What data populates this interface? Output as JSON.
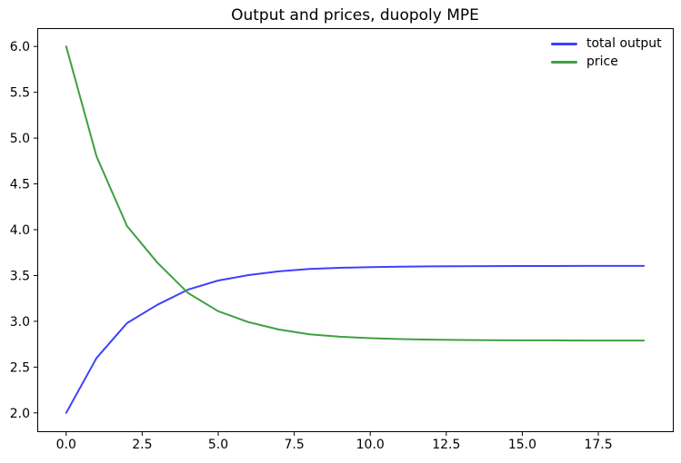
{
  "figure": {
    "background": "#ffffff",
    "spine_color": "#000000",
    "tick_color": "#000000"
  },
  "chart_data": {
    "type": "line",
    "title": "Output and prices, duopoly MPE",
    "xlabel": "",
    "ylabel": "",
    "grid": false,
    "xlim": [
      -0.95,
      19.95
    ],
    "ylim": [
      1.8,
      6.2
    ],
    "xticks": [
      0,
      2.5,
      5,
      7.5,
      10,
      12.5,
      15,
      17.5
    ],
    "xtick_labels": [
      "0.0",
      "2.5",
      "5.0",
      "7.5",
      "10.0",
      "12.5",
      "15.0",
      "17.5"
    ],
    "yticks": [
      2.0,
      2.5,
      3.0,
      3.5,
      4.0,
      4.5,
      5.0,
      5.5,
      6.0
    ],
    "ytick_labels": [
      "2.0",
      "2.5",
      "3.0",
      "3.5",
      "4.0",
      "4.5",
      "5.0",
      "5.5",
      "6.0"
    ],
    "x": [
      0,
      1,
      2,
      3,
      4,
      5,
      6,
      7,
      8,
      9,
      10,
      11,
      12,
      13,
      14,
      15,
      16,
      17,
      18,
      19
    ],
    "series": [
      {
        "name": "total output",
        "color": "#4040ff",
        "line_width": 2,
        "values": [
          2.0,
          2.6,
          2.98,
          3.18,
          3.345,
          3.445,
          3.505,
          3.545,
          3.571,
          3.584,
          3.592,
          3.597,
          3.6,
          3.602,
          3.603,
          3.604,
          3.604,
          3.605,
          3.605,
          3.605
        ]
      },
      {
        "name": "price",
        "color": "#40a040",
        "line_width": 2,
        "values": [
          6.0,
          4.8,
          4.04,
          3.64,
          3.31,
          3.11,
          2.99,
          2.91,
          2.858,
          2.832,
          2.816,
          2.806,
          2.8,
          2.796,
          2.794,
          2.792,
          2.792,
          2.79,
          2.79,
          2.79
        ]
      }
    ],
    "legend": {
      "position": "upper right",
      "frame": false,
      "entries": [
        "total output",
        "price"
      ]
    }
  }
}
